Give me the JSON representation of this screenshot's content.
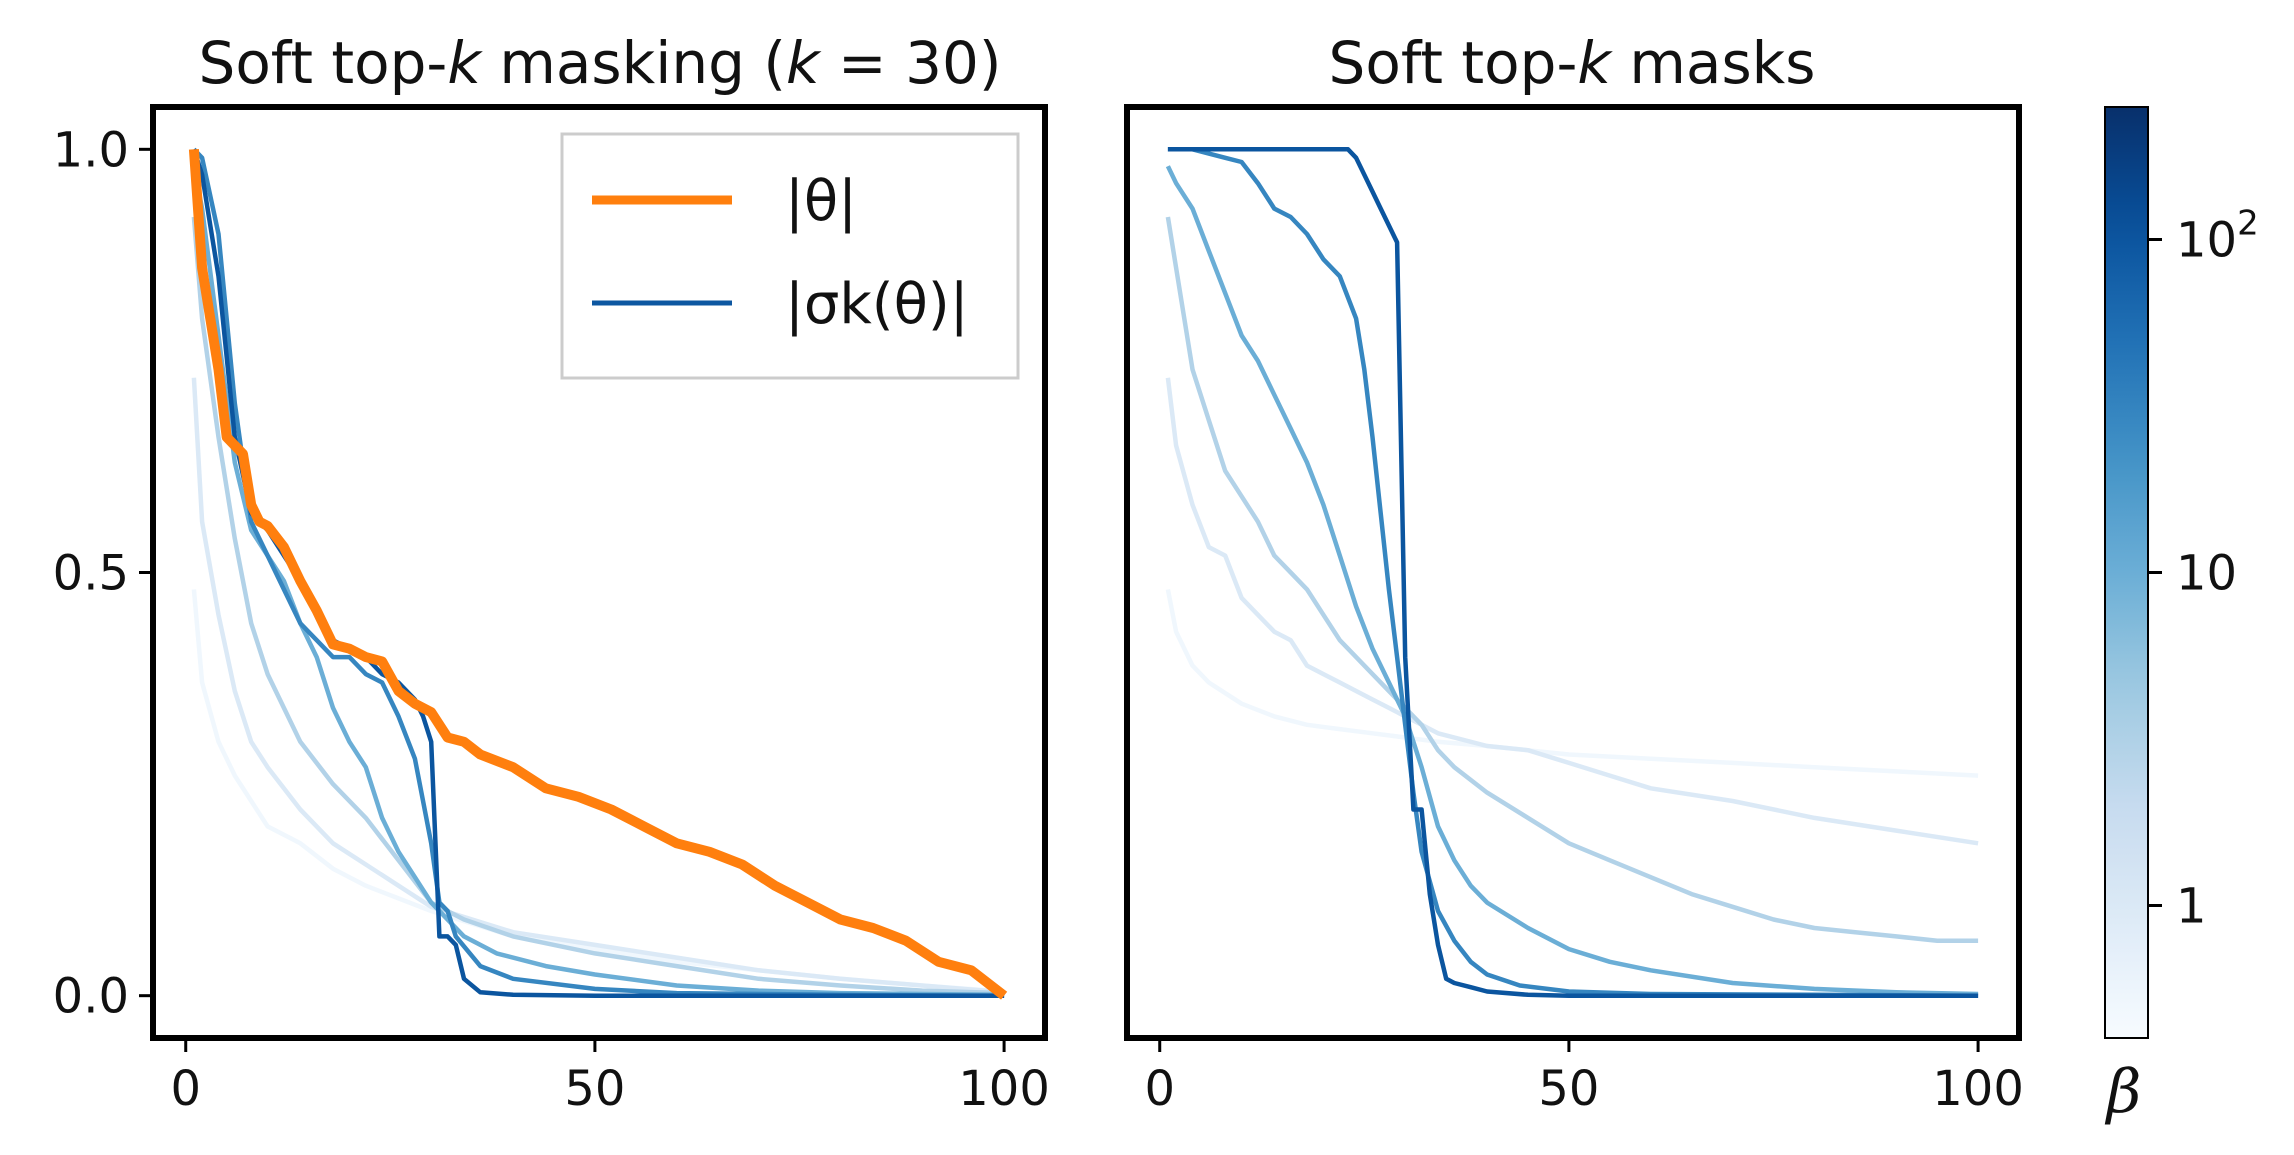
{
  "colors": {
    "orange": "#ff7f0e",
    "blues_cmap": [
      "#f7fbff",
      "#deebf7",
      "#c6dbef",
      "#9ecae1",
      "#6baed6",
      "#4292c6",
      "#2171b5",
      "#08519c",
      "#08306b"
    ]
  },
  "chart_data": [
    {
      "type": "line",
      "title": "Soft top-k masking (k = 30)",
      "title_parts": {
        "pre": "Soft top-",
        "k1": "k",
        "mid": " masking (",
        "k2": "k",
        "post": " = 30)"
      },
      "xlabel": "",
      "ylabel": "",
      "xlim": [
        -4,
        105
      ],
      "ylim": [
        -0.05,
        1.05
      ],
      "xticks": [
        {
          "v": 0,
          "label": "0"
        },
        {
          "v": 50,
          "label": "50"
        },
        {
          "v": 100,
          "label": "100"
        }
      ],
      "yticks": [
        {
          "v": 0.0,
          "label": "0.0"
        },
        {
          "v": 0.5,
          "label": "0.5"
        },
        {
          "v": 1.0,
          "label": "1.0"
        }
      ],
      "grid": false,
      "legend": {
        "placement": "top-right",
        "entries": [
          {
            "name": "|θ|"
          },
          {
            "name": "|σk(θ)|"
          }
        ]
      },
      "theta": {
        "name": "|θ|",
        "x": [
          1,
          2,
          3,
          4,
          5,
          6,
          7,
          8,
          9,
          10,
          12,
          14,
          16,
          18,
          20,
          22,
          24,
          26,
          28,
          30,
          32,
          34,
          36,
          40,
          44,
          48,
          52,
          56,
          60,
          64,
          68,
          72,
          76,
          80,
          84,
          88,
          92,
          96,
          100
        ],
        "y": [
          1.0,
          0.86,
          0.8,
          0.74,
          0.66,
          0.65,
          0.64,
          0.58,
          0.56,
          0.555,
          0.53,
          0.49,
          0.455,
          0.415,
          0.41,
          0.4,
          0.395,
          0.36,
          0.345,
          0.335,
          0.305,
          0.3,
          0.285,
          0.27,
          0.245,
          0.235,
          0.22,
          0.2,
          0.18,
          0.17,
          0.155,
          0.13,
          0.11,
          0.09,
          0.08,
          0.065,
          0.04,
          0.03,
          0.0
        ]
      },
      "soft_series": [
        {
          "beta": 0.5,
          "x": [
            1,
            2,
            4,
            6,
            8,
            10,
            14,
            18,
            22,
            26,
            30,
            40,
            50,
            60,
            70,
            80,
            90,
            100
          ],
          "y": [
            0.48,
            0.37,
            0.3,
            0.26,
            0.23,
            0.2,
            0.18,
            0.15,
            0.13,
            0.115,
            0.1,
            0.07,
            0.055,
            0.04,
            0.03,
            0.02,
            0.012,
            0.005
          ]
        },
        {
          "beta": 1,
          "x": [
            1,
            2,
            4,
            6,
            8,
            10,
            14,
            18,
            22,
            26,
            30,
            40,
            50,
            60,
            70,
            80,
            90,
            100
          ],
          "y": [
            0.73,
            0.56,
            0.45,
            0.36,
            0.3,
            0.27,
            0.22,
            0.18,
            0.155,
            0.13,
            0.105,
            0.075,
            0.06,
            0.045,
            0.03,
            0.02,
            0.012,
            0.004
          ]
        },
        {
          "beta": 3,
          "x": [
            1,
            2,
            4,
            6,
            8,
            10,
            12,
            14,
            18,
            22,
            26,
            30,
            34,
            40,
            50,
            60,
            70,
            80,
            90,
            100
          ],
          "y": [
            0.92,
            0.8,
            0.66,
            0.54,
            0.44,
            0.38,
            0.34,
            0.3,
            0.25,
            0.21,
            0.16,
            0.11,
            0.09,
            0.07,
            0.05,
            0.035,
            0.02,
            0.012,
            0.006,
            0.003
          ]
        },
        {
          "beta": 10,
          "x": [
            1,
            2,
            4,
            6,
            8,
            10,
            12,
            14,
            16,
            18,
            20,
            22,
            24,
            26,
            28,
            30,
            32,
            34,
            38,
            44,
            50,
            60,
            70,
            80,
            90,
            100
          ],
          "y": [
            0.98,
            0.93,
            0.78,
            0.63,
            0.55,
            0.52,
            0.49,
            0.44,
            0.4,
            0.34,
            0.3,
            0.27,
            0.21,
            0.17,
            0.14,
            0.11,
            0.09,
            0.07,
            0.05,
            0.035,
            0.025,
            0.012,
            0.006,
            0.003,
            0.002,
            0.001
          ]
        },
        {
          "beta": 30,
          "x": [
            1,
            2,
            4,
            6,
            8,
            10,
            12,
            14,
            16,
            18,
            20,
            22,
            24,
            26,
            28,
            30,
            31,
            32,
            33,
            36,
            40,
            50,
            60,
            80,
            100
          ],
          "y": [
            1.0,
            0.99,
            0.9,
            0.7,
            0.56,
            0.52,
            0.48,
            0.44,
            0.42,
            0.4,
            0.4,
            0.38,
            0.37,
            0.33,
            0.28,
            0.18,
            0.11,
            0.1,
            0.07,
            0.035,
            0.02,
            0.008,
            0.003,
            0.001,
            0.0
          ]
        },
        {
          "beta": 100,
          "x": [
            1,
            2,
            4,
            6,
            8,
            10,
            14,
            18,
            22,
            24,
            26,
            28,
            29,
            30,
            31,
            32,
            33,
            34,
            36,
            40,
            50,
            100
          ],
          "y": [
            1.0,
            0.97,
            0.85,
            0.66,
            0.57,
            0.55,
            0.49,
            0.42,
            0.4,
            0.38,
            0.37,
            0.35,
            0.33,
            0.3,
            0.07,
            0.07,
            0.06,
            0.02,
            0.004,
            0.001,
            0.0,
            0.0
          ]
        }
      ]
    },
    {
      "type": "line",
      "title": "Soft top-k masks",
      "title_parts": {
        "pre": "Soft top-",
        "k1": "k",
        "post": " masks"
      },
      "xlabel": "",
      "ylabel": "",
      "xlim": [
        -4,
        105
      ],
      "ylim": [
        -0.05,
        1.05
      ],
      "xticks": [
        {
          "v": 0,
          "label": "0"
        },
        {
          "v": 50,
          "label": "50"
        },
        {
          "v": 100,
          "label": "100"
        }
      ],
      "grid": false,
      "series": [
        {
          "beta": 0.5,
          "x": [
            1,
            2,
            4,
            6,
            10,
            14,
            18,
            22,
            26,
            30,
            34,
            40,
            50,
            60,
            70,
            80,
            90,
            100
          ],
          "y": [
            0.48,
            0.43,
            0.39,
            0.37,
            0.345,
            0.33,
            0.32,
            0.315,
            0.31,
            0.305,
            0.3,
            0.295,
            0.285,
            0.28,
            0.275,
            0.27,
            0.265,
            0.26
          ]
        },
        {
          "beta": 1,
          "x": [
            1,
            2,
            4,
            6,
            8,
            10,
            12,
            14,
            16,
            18,
            20,
            22,
            24,
            26,
            28,
            30,
            32,
            34,
            40,
            45,
            50,
            55,
            60,
            70,
            80,
            90,
            100
          ],
          "y": [
            0.73,
            0.65,
            0.58,
            0.53,
            0.52,
            0.47,
            0.45,
            0.43,
            0.42,
            0.39,
            0.38,
            0.37,
            0.36,
            0.35,
            0.34,
            0.33,
            0.32,
            0.31,
            0.295,
            0.29,
            0.275,
            0.26,
            0.245,
            0.23,
            0.21,
            0.195,
            0.18
          ]
        },
        {
          "beta": 3,
          "x": [
            1,
            2,
            4,
            6,
            8,
            10,
            12,
            14,
            16,
            18,
            20,
            22,
            24,
            26,
            28,
            30,
            32,
            34,
            36,
            40,
            45,
            50,
            55,
            60,
            65,
            70,
            75,
            80,
            85,
            90,
            95,
            100
          ],
          "y": [
            0.92,
            0.86,
            0.74,
            0.68,
            0.62,
            0.59,
            0.56,
            0.52,
            0.5,
            0.48,
            0.45,
            0.42,
            0.4,
            0.38,
            0.36,
            0.34,
            0.32,
            0.29,
            0.27,
            0.24,
            0.21,
            0.18,
            0.16,
            0.14,
            0.12,
            0.105,
            0.09,
            0.08,
            0.075,
            0.07,
            0.065,
            0.065
          ]
        },
        {
          "beta": 10,
          "x": [
            1,
            2,
            4,
            6,
            8,
            10,
            12,
            14,
            16,
            18,
            20,
            22,
            24,
            26,
            28,
            30,
            32,
            34,
            36,
            38,
            40,
            45,
            50,
            55,
            60,
            70,
            80,
            90,
            100
          ],
          "y": [
            0.98,
            0.96,
            0.93,
            0.88,
            0.83,
            0.78,
            0.75,
            0.71,
            0.67,
            0.63,
            0.58,
            0.52,
            0.46,
            0.41,
            0.37,
            0.33,
            0.27,
            0.2,
            0.16,
            0.13,
            0.11,
            0.08,
            0.055,
            0.04,
            0.03,
            0.015,
            0.008,
            0.004,
            0.002
          ]
        },
        {
          "beta": 30,
          "x": [
            1,
            2,
            4,
            6,
            8,
            10,
            12,
            14,
            16,
            18,
            20,
            22,
            24,
            25,
            26,
            27,
            28,
            29,
            30,
            31,
            32,
            34,
            36,
            38,
            40,
            44,
            50,
            60,
            80,
            100
          ],
          "y": [
            1.0,
            1.0,
            1.0,
            0.995,
            0.99,
            0.985,
            0.96,
            0.93,
            0.92,
            0.9,
            0.87,
            0.85,
            0.8,
            0.74,
            0.66,
            0.57,
            0.48,
            0.4,
            0.32,
            0.24,
            0.17,
            0.1,
            0.065,
            0.04,
            0.025,
            0.012,
            0.005,
            0.002,
            0.001,
            0.0
          ]
        },
        {
          "beta": 100,
          "x": [
            1,
            10,
            20,
            23,
            24,
            25,
            26,
            27,
            28,
            29,
            30,
            31,
            32,
            33,
            34,
            35,
            36,
            38,
            40,
            45,
            50,
            60,
            80,
            100
          ],
          "y": [
            1.0,
            1.0,
            1.0,
            1.0,
            0.99,
            0.97,
            0.95,
            0.93,
            0.91,
            0.89,
            0.4,
            0.22,
            0.22,
            0.12,
            0.06,
            0.02,
            0.015,
            0.01,
            0.005,
            0.001,
            0.0,
            0.0,
            0.0,
            0.0
          ]
        }
      ]
    }
  ],
  "colorbar": {
    "label": "β",
    "scale": "log",
    "range": [
      0.4,
      250
    ],
    "ticks": [
      {
        "v": 1,
        "label": "1"
      },
      {
        "v": 10,
        "label": "10"
      },
      {
        "v": 100,
        "label": "10",
        "sup": "2"
      }
    ]
  }
}
